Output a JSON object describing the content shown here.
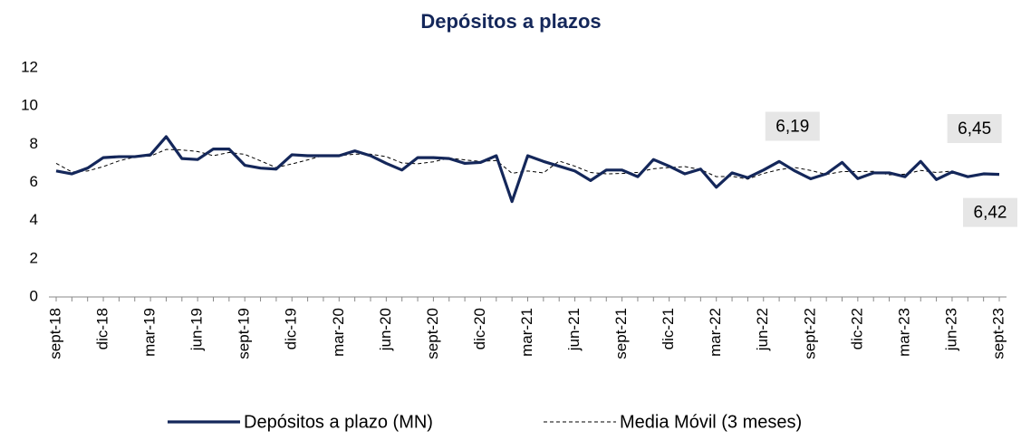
{
  "chart_data": {
    "type": "line",
    "title": "Depósitos a plazos",
    "categories": [
      "sept-18",
      null,
      null,
      "dic-18",
      null,
      null,
      "mar-19",
      null,
      null,
      "jun-19",
      null,
      null,
      "sept-19",
      null,
      null,
      "dic-19",
      null,
      null,
      "mar-20",
      null,
      null,
      "jun-20",
      null,
      null,
      "sept-20",
      null,
      null,
      "dic-20",
      null,
      null,
      "mar-21",
      null,
      null,
      "jun-21",
      null,
      null,
      "sept-21",
      null,
      null,
      "dic-21",
      null,
      null,
      "mar-22",
      null,
      null,
      "jun-22",
      null,
      null,
      "sept-22",
      null,
      null,
      "dic-22",
      null,
      null,
      "mar-23",
      null,
      null,
      "jun-23",
      null,
      null,
      "sept-23"
    ],
    "series": [
      {
        "name": "Depósitos a plazo (MN)",
        "color": "#14275a",
        "dash": false,
        "values": [
          6.6,
          6.45,
          6.75,
          7.3,
          7.35,
          7.35,
          7.45,
          8.4,
          7.25,
          7.2,
          7.75,
          7.75,
          6.9,
          6.75,
          6.7,
          7.45,
          7.4,
          7.4,
          7.4,
          7.65,
          7.4,
          7.0,
          6.65,
          7.3,
          7.3,
          7.25,
          7.0,
          7.05,
          7.4,
          5.0,
          7.4,
          7.1,
          6.85,
          6.6,
          6.1,
          6.65,
          6.65,
          6.3,
          7.2,
          6.85,
          6.45,
          6.7,
          5.75,
          6.5,
          6.25,
          6.65,
          7.1,
          6.6,
          6.19,
          6.45,
          7.05,
          6.2,
          6.5,
          6.5,
          6.3,
          7.1,
          6.15,
          6.55,
          6.3,
          6.45,
          6.42
        ],
        "value_labels": [
          null,
          null,
          null,
          null,
          null,
          null,
          null,
          null,
          null,
          null,
          null,
          null,
          null,
          null,
          null,
          null,
          null,
          null,
          null,
          null,
          null,
          null,
          null,
          null,
          null,
          null,
          null,
          null,
          null,
          null,
          null,
          null,
          null,
          null,
          null,
          null,
          null,
          null,
          null,
          null,
          null,
          null,
          null,
          null,
          null,
          null,
          null,
          null,
          "6,19",
          null,
          null,
          null,
          null,
          null,
          null,
          null,
          null,
          null,
          null,
          "6,45",
          "6,42"
        ]
      },
      {
        "name": "Media Móvil (3 meses)",
        "color": "#000000",
        "dash": true,
        "values": [
          7.0,
          6.55,
          6.6,
          6.83,
          7.13,
          7.33,
          7.38,
          7.73,
          7.7,
          7.62,
          7.4,
          7.57,
          7.47,
          7.13,
          6.78,
          6.97,
          7.18,
          7.42,
          7.4,
          7.48,
          7.48,
          7.35,
          7.02,
          6.98,
          7.08,
          7.28,
          7.18,
          7.1,
          7.15,
          6.48,
          6.6,
          6.5,
          7.12,
          6.85,
          6.52,
          6.45,
          6.47,
          6.53,
          6.72,
          6.78,
          6.83,
          6.67,
          6.3,
          6.32,
          6.17,
          6.47,
          6.67,
          6.78,
          6.63,
          6.42,
          6.57,
          6.57,
          6.58,
          6.4,
          6.43,
          6.63,
          6.52,
          6.6,
          6.33,
          6.43,
          6.39
        ]
      }
    ],
    "ylim": [
      0,
      12
    ],
    "yticks": [
      0,
      2,
      4,
      6,
      8,
      10,
      12
    ]
  }
}
